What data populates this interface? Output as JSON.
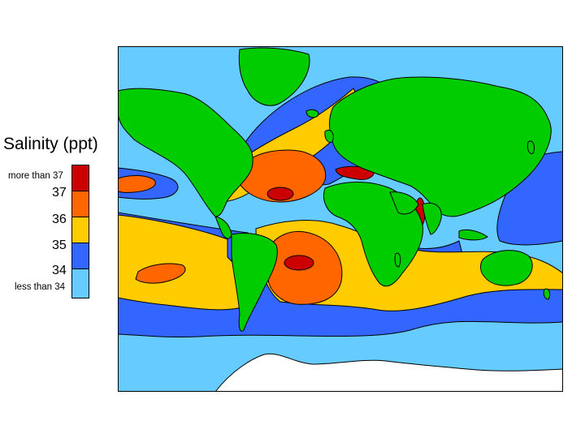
{
  "legend": {
    "title": "Salinity (ppt)",
    "top_label": "more than 37",
    "bottom_label": "less than 34",
    "ticks": [
      "37",
      "36",
      "35",
      "34"
    ],
    "colors": {
      "more_than_37": "#cc0000",
      "c36_37": "#ff6600",
      "c35_36": "#ffcc00",
      "c34_35": "#3366ff",
      "less_than_34": "#66ccff",
      "land": "#00cc00",
      "ice": "#ffffff"
    }
  }
}
